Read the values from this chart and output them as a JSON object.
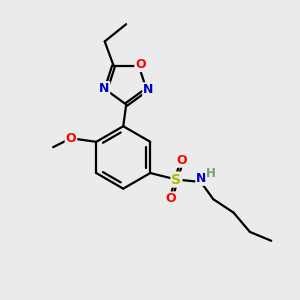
{
  "bg_color": "#ebebeb",
  "atom_colors": {
    "C": "#000000",
    "N": "#0000cc",
    "O": "#ff0000",
    "S": "#b8b800",
    "H": "#6fa06f"
  },
  "bond_color": "#000000",
  "bond_width": 1.6,
  "figsize": [
    3.0,
    3.0
  ],
  "dpi": 100
}
